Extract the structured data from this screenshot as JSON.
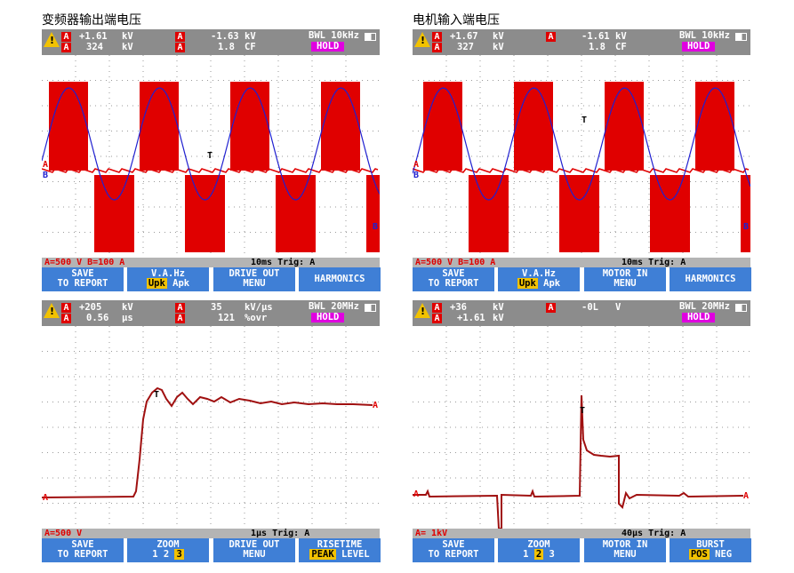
{
  "titles": {
    "left": "变频器输出端电压",
    "right": "电机输入端电压"
  },
  "warning_glyph": "!",
  "scopes": [
    {
      "hdr": {
        "ch1": "A",
        "ch2": "A",
        "v1a": "+1.61",
        "u1a": "kV",
        "v1b": "324",
        "u1b": "kV",
        "ch3": "A",
        "ch4": "A",
        "v2a": "-1.63",
        "u2a": "kV",
        "v2b": "1.8",
        "u2b": "CF",
        "bwl": "BWL 10kHz",
        "hold": "HOLD"
      },
      "status": {
        "left": "A=500 V  B=100 A",
        "right": "10ms Trig: A"
      },
      "menu": [
        {
          "a": "SAVE",
          "b": "TO REPORT"
        },
        {
          "a": "V.A.Hz",
          "hl": "Upk",
          "rest": " Apk"
        },
        {
          "a": "DRIVE OUT",
          "b": "MENU"
        },
        {
          "a": "HARMONICS",
          "b": ""
        }
      ]
    },
    {
      "hdr": {
        "ch1": "A",
        "ch2": "A",
        "v1a": "+1.67",
        "u1a": "kV",
        "v1b": "327",
        "u1b": "kV",
        "ch3": "A",
        "ch4": "",
        "v2a": "-1.61",
        "u2a": "kV",
        "v2b": "1.8",
        "u2b": "CF",
        "bwl": "BWL 10kHz",
        "hold": "HOLD"
      },
      "status": {
        "left": "A=500 V  B=100 A",
        "right": "10ms Trig: A"
      },
      "menu": [
        {
          "a": "SAVE",
          "b": "TO REPORT"
        },
        {
          "a": "V.A.Hz",
          "hl": "Upk",
          "rest": " Apk"
        },
        {
          "a": "MOTOR IN",
          "b": "MENU"
        },
        {
          "a": "HARMONICS",
          "b": ""
        }
      ]
    },
    {
      "hdr": {
        "ch1": "A",
        "ch2": "A",
        "v1a": "+205",
        "u1a": "kV",
        "v1b": "0.56",
        "u1b": "µs",
        "ch3": "A",
        "ch4": "A",
        "v2a": "35",
        "u2a": "kV/µs",
        "v2b": "121",
        "u2b": "%ovr",
        "bwl": "BWL 20MHz",
        "hold": "HOLD"
      },
      "status": {
        "left": "A=500 V",
        "right": "1µs Trig: A"
      },
      "menu": [
        {
          "a": "SAVE",
          "b": "TO REPORT"
        },
        {
          "a": "ZOOM",
          "pre": "1  2  ",
          "hl": "3",
          "rest": ""
        },
        {
          "a": "DRIVE OUT",
          "b": "MENU"
        },
        {
          "a": "RISETIME",
          "hl": "PEAK",
          "rest": " LEVEL"
        }
      ]
    },
    {
      "hdr": {
        "ch1": "A",
        "ch2": "A",
        "v1a": "+36",
        "u1a": "kV",
        "v1b": "+1.61",
        "u1b": "kV",
        "ch3": "A",
        "ch4": "",
        "v2a": "-0L",
        "u2a": "V",
        "v2b": "",
        "u2b": "",
        "bwl": "BWL 20MHz",
        "hold": "HOLD"
      },
      "status": {
        "left": "A= 1kV",
        "right": "40µs Trig: A"
      },
      "menu": [
        {
          "a": "SAVE",
          "b": "TO REPORT"
        },
        {
          "a": "ZOOM",
          "pre": "1 ",
          "hl": "2",
          "rest": " 3"
        },
        {
          "a": "MOTOR IN",
          "b": "MENU"
        },
        {
          "a": "BURST",
          "hl": "POS",
          "rest": " NEG"
        }
      ]
    }
  ],
  "trace_markers": {
    "a": "A",
    "b": "B",
    "trig": "T"
  },
  "colors": {
    "red": "#e00000",
    "blue": "#2020d0",
    "dark": "#a01010",
    "menu": "#3f7fd6",
    "hold": "#e000e0",
    "highlight": "#f2c200"
  }
}
